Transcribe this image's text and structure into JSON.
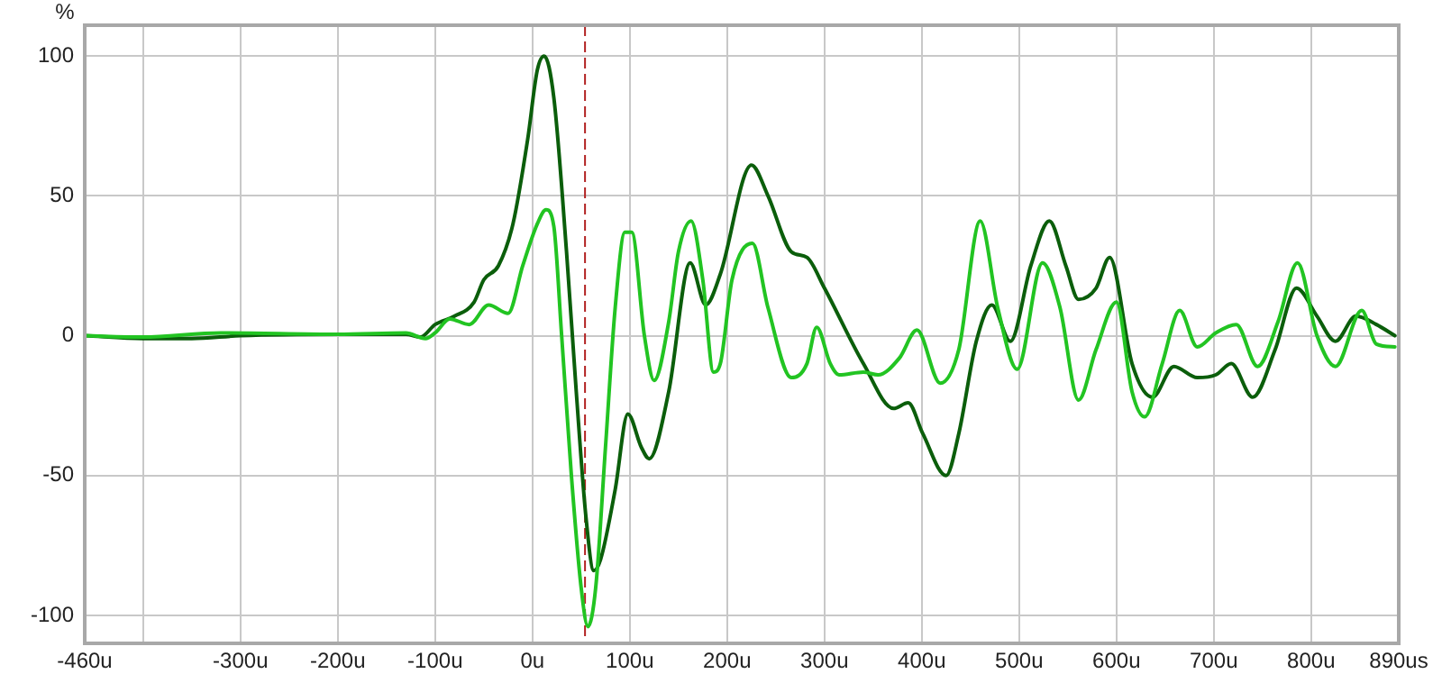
{
  "chart_data": {
    "type": "line",
    "ylabel": "%",
    "xlim": [
      -460,
      890
    ],
    "ylim": [
      -110,
      111
    ],
    "xticks": [
      {
        "value": -460,
        "label": "-460u"
      },
      {
        "value": -400,
        "label": null
      },
      {
        "value": -300,
        "label": "-300u"
      },
      {
        "value": -200,
        "label": "-200u"
      },
      {
        "value": -100,
        "label": "-100u"
      },
      {
        "value": 0,
        "label": "0u"
      },
      {
        "value": 100,
        "label": "100u"
      },
      {
        "value": 200,
        "label": "200u"
      },
      {
        "value": 300,
        "label": "300u"
      },
      {
        "value": 400,
        "label": "400u"
      },
      {
        "value": 500,
        "label": "500u"
      },
      {
        "value": 600,
        "label": "600u"
      },
      {
        "value": 700,
        "label": "700u"
      },
      {
        "value": 800,
        "label": "800u"
      },
      {
        "value": 890,
        "label": "890us"
      }
    ],
    "yticks": [
      -100,
      -50,
      0,
      50,
      100
    ],
    "grid": true,
    "legend": false,
    "marker": "none",
    "line_style": "solid",
    "ref_lines": [
      {
        "axis": "x",
        "value": 54,
        "color": "#b22222",
        "line_style": "dashed"
      }
    ],
    "series": [
      {
        "color": "#22c422",
        "x": [
          -460,
          -400,
          -320,
          -200,
          -130,
          -110,
          -100,
          -85,
          -65,
          -45,
          -25,
          -10,
          5,
          14,
          22,
          30,
          40,
          50,
          57,
          65,
          75,
          85,
          95,
          102,
          115,
          125,
          140,
          150,
          163,
          175,
          186,
          193,
          205,
          226,
          242,
          266,
          282,
          292,
          306,
          315,
          340,
          355,
          377,
          395,
          419,
          438,
          460,
          478,
          498,
          524,
          542,
          561,
          579,
          600,
          616,
          629,
          647,
          665,
          683,
          702,
          723,
          745,
          766,
          786,
          806,
          825,
          852,
          867,
          886
        ],
        "values": [
          0,
          -0.5,
          1,
          0.5,
          1,
          -1,
          1,
          6,
          4,
          11,
          8,
          25,
          40,
          45,
          39,
          0,
          -50,
          -90,
          -104,
          -90,
          -40,
          10,
          37,
          37,
          0,
          -16,
          5,
          30,
          41,
          20,
          -13,
          -10,
          20,
          33,
          10,
          -15,
          -10,
          3,
          -10,
          -14,
          -13,
          -14,
          -8,
          2,
          -17,
          -5,
          41,
          10,
          -12,
          26,
          10,
          -23,
          -5,
          12,
          -20,
          -29,
          -10,
          9,
          -4,
          1,
          4,
          -11,
          5,
          26,
          0,
          -11,
          9,
          -3,
          -4
        ]
      },
      {
        "color": "#0b5e0b",
        "x": [
          -460,
          -400,
          -350,
          -300,
          -200,
          -130,
          -115,
          -100,
          -80,
          -60,
          -50,
          -35,
          -20,
          -5,
          5,
          12,
          22,
          35,
          45,
          55,
          63,
          70,
          85,
          98,
          112,
          120,
          140,
          162,
          178,
          193,
          225,
          242,
          266,
          282,
          300,
          340,
          371,
          386,
          401,
          425,
          438,
          456,
          472,
          491,
          512,
          531,
          548,
          561,
          579,
          593,
          616,
          637,
          659,
          683,
          702,
          718,
          740,
          763,
          785,
          806,
          825,
          846,
          867,
          886
        ],
        "values": [
          0,
          -1,
          -1,
          0,
          0.5,
          0.5,
          -0.5,
          4,
          7,
          12,
          20,
          25,
          40,
          70,
          95,
          100,
          85,
          30,
          -20,
          -65,
          -84,
          -80,
          -55,
          -28,
          -40,
          -44,
          -20,
          26,
          11,
          22,
          61,
          50,
          30,
          28,
          17,
          -10,
          -26,
          -24,
          -35,
          -50,
          -35,
          -2,
          11,
          -2,
          25,
          41,
          25,
          13,
          17,
          28,
          -10,
          -22,
          -11,
          -15,
          -14,
          -10,
          -22,
          -5,
          17,
          7,
          -2,
          7,
          4,
          0
        ]
      }
    ]
  }
}
